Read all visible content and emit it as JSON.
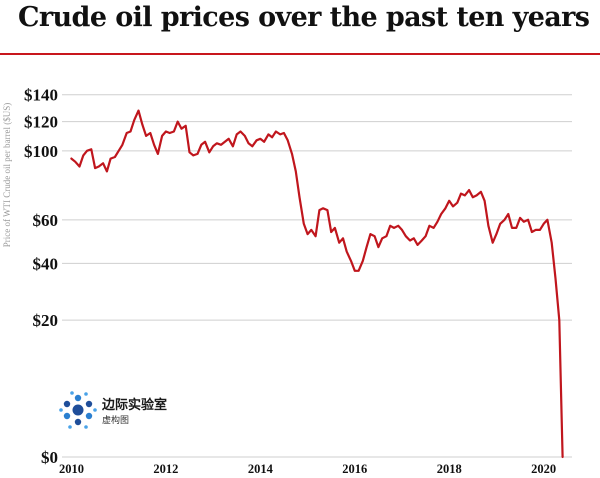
{
  "title": "Crude oil prices over the past ten years",
  "logo": {
    "name": "边际实验室",
    "sub": "虚构图"
  },
  "chart_data": {
    "type": "line",
    "title": "Crude oil prices over the past ten years",
    "ylabel": "Price of WTI Crude oil per barrel ($US)",
    "xlabel": "",
    "y_scale": "sqrt",
    "ylim": [
      0,
      150
    ],
    "xlim": [
      2009.8,
      2020.6
    ],
    "y_ticks": [
      {
        "value": 0,
        "label": "$0"
      },
      {
        "value": 20,
        "label": "$20"
      },
      {
        "value": 40,
        "label": "$40"
      },
      {
        "value": 60,
        "label": "$60"
      },
      {
        "value": 100,
        "label": "$100"
      },
      {
        "value": 120,
        "label": "$120"
      },
      {
        "value": 140,
        "label": "$140"
      }
    ],
    "x_ticks": [
      {
        "value": 2010,
        "label": "2010"
      },
      {
        "value": 2012,
        "label": "2012"
      },
      {
        "value": 2014,
        "label": "2014"
      },
      {
        "value": 2016,
        "label": "2016"
      },
      {
        "value": 2018,
        "label": "2018"
      },
      {
        "value": 2020,
        "label": "2020"
      }
    ],
    "grid": true,
    "line_color": "#c0161d",
    "series": [
      {
        "x": [
          2010.0,
          2010.08,
          2010.17,
          2010.25,
          2010.33,
          2010.42,
          2010.5,
          2010.58,
          2010.67,
          2010.75,
          2010.83,
          2010.92,
          2011.0,
          2011.08,
          2011.17,
          2011.25,
          2011.33,
          2011.42,
          2011.5,
          2011.58,
          2011.67,
          2011.75,
          2011.83,
          2011.92,
          2012.0,
          2012.08,
          2012.17,
          2012.25,
          2012.33,
          2012.42,
          2012.5,
          2012.58,
          2012.67,
          2012.75,
          2012.83,
          2012.92,
          2013.0,
          2013.08,
          2013.17,
          2013.25,
          2013.33,
          2013.42,
          2013.5,
          2013.58,
          2013.67,
          2013.75,
          2013.83,
          2013.92,
          2014.0,
          2014.08,
          2014.17,
          2014.25,
          2014.33,
          2014.42,
          2014.5,
          2014.58,
          2014.67,
          2014.75,
          2014.83,
          2014.92,
          2015.0,
          2015.08,
          2015.17,
          2015.25,
          2015.33,
          2015.42,
          2015.5,
          2015.58,
          2015.67,
          2015.75,
          2015.83,
          2015.92,
          2016.0,
          2016.08,
          2016.17,
          2016.25,
          2016.33,
          2016.42,
          2016.5,
          2016.58,
          2016.67,
          2016.75,
          2016.83,
          2016.92,
          2017.0,
          2017.08,
          2017.17,
          2017.25,
          2017.33,
          2017.42,
          2017.5,
          2017.58,
          2017.67,
          2017.75,
          2017.83,
          2017.92,
          2018.0,
          2018.08,
          2018.17,
          2018.25,
          2018.33,
          2018.42,
          2018.5,
          2018.58,
          2018.67,
          2018.75,
          2018.83,
          2018.92,
          2019.0,
          2019.08,
          2019.17,
          2019.25,
          2019.33,
          2019.42,
          2019.5,
          2019.58,
          2019.67,
          2019.75,
          2019.83,
          2019.92,
          2020.0,
          2020.08,
          2020.17,
          2020.25,
          2020.33,
          2020.4
        ],
        "y": [
          95,
          93,
          90,
          97,
          100,
          101,
          89,
          90,
          92,
          87,
          95,
          96,
          100,
          104,
          112,
          113,
          121,
          128,
          118,
          110,
          112,
          104,
          98,
          110,
          113,
          112,
          113,
          120,
          115,
          117,
          99,
          97,
          98,
          104,
          106,
          99,
          103,
          105,
          104,
          106,
          108,
          103,
          111,
          113,
          110,
          105,
          103,
          107,
          108,
          106,
          111,
          109,
          113,
          111,
          112,
          107,
          98,
          87,
          72,
          58,
          53,
          55,
          52,
          65,
          66,
          65,
          54,
          56,
          49,
          51,
          45,
          41,
          37,
          37,
          41,
          47,
          53,
          52,
          47,
          51,
          52,
          57,
          56,
          57,
          55,
          52,
          50,
          51,
          48,
          50,
          52,
          57,
          56,
          59,
          63,
          66,
          70,
          67,
          69,
          74,
          73,
          76,
          72,
          73,
          75,
          70,
          57,
          49,
          53,
          58,
          60,
          63,
          56,
          56,
          61,
          59,
          60,
          54,
          55,
          55,
          58,
          60,
          49,
          34,
          20,
          0
        ]
      }
    ]
  }
}
